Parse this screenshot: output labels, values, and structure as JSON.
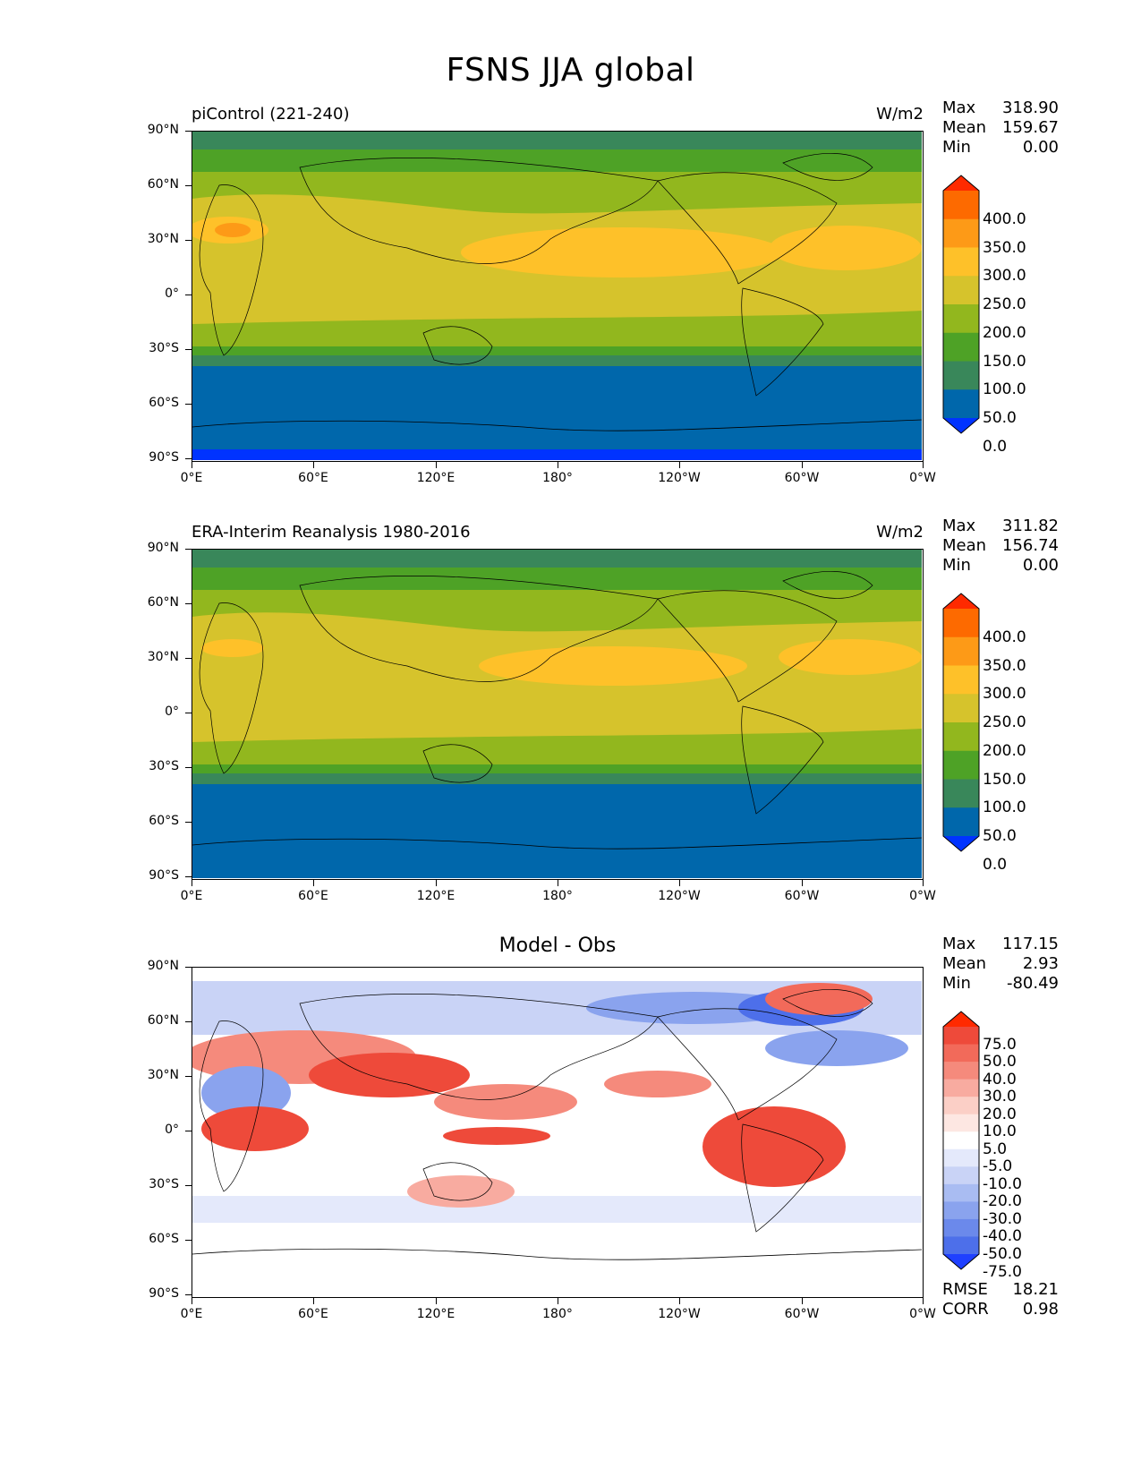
{
  "title": "FSNS JJA global",
  "axes": {
    "lat_labels": [
      "90°N",
      "60°N",
      "30°N",
      "0°",
      "30°S",
      "60°S",
      "90°S"
    ],
    "lon_labels": [
      "0°E",
      "60°E",
      "120°E",
      "180°",
      "120°W",
      "60°W",
      "0°W"
    ]
  },
  "panels": [
    {
      "title_left": "piControl (221-240)",
      "title_center": "",
      "units": "W/m2",
      "stats": {
        "max_label": "Max",
        "max": "318.90",
        "mean_label": "Mean",
        "mean": "159.67",
        "min_label": "Min",
        "min": "0.00"
      },
      "colorbar": {
        "labels": [
          "400.0",
          "350.0",
          "300.0",
          "250.0",
          "200.0",
          "150.0",
          "100.0",
          "50.0",
          "0.0"
        ],
        "colors": [
          "#fe2a00",
          "#fd6a00",
          "#fd9a17",
          "#fec129",
          "#d6c32c",
          "#92b71e",
          "#4ea226",
          "#39875a",
          "#0067ab",
          "#0033ff"
        ]
      }
    },
    {
      "title_left": "ERA-Interim Reanalysis 1980-2016",
      "title_center": "",
      "units": "W/m2",
      "stats": {
        "max_label": "Max",
        "max": "311.82",
        "mean_label": "Mean",
        "mean": "156.74",
        "min_label": "Min",
        "min": "0.00"
      },
      "colorbar": {
        "labels": [
          "400.0",
          "350.0",
          "300.0",
          "250.0",
          "200.0",
          "150.0",
          "100.0",
          "50.0",
          "0.0"
        ],
        "colors": [
          "#fe2a00",
          "#fd6a00",
          "#fd9a17",
          "#fec129",
          "#d6c32c",
          "#92b71e",
          "#4ea226",
          "#39875a",
          "#0067ab",
          "#0033ff"
        ]
      }
    },
    {
      "title_left": "",
      "title_center": "Model - Obs",
      "units": "",
      "stats": {
        "max_label": "Max",
        "max": "117.15",
        "mean_label": "Mean",
        "mean": "2.93",
        "min_label": "Min",
        "min": "-80.49"
      },
      "colorbar": {
        "labels": [
          "75.0",
          "50.0",
          "40.0",
          "30.0",
          "20.0",
          "10.0",
          "5.0",
          "-5.0",
          "-10.0",
          "-20.0",
          "-30.0",
          "-40.0",
          "-50.0",
          "-75.0"
        ],
        "colors": [
          "#ff2a00",
          "#ee4a3a",
          "#f26a5a",
          "#f58a7c",
          "#f8aba0",
          "#fbcfc6",
          "#fde7e2",
          "#ffffff",
          "#e4e9fb",
          "#c9d3f6",
          "#a9bcf2",
          "#8aa3ee",
          "#6b89eb",
          "#4d6fea",
          "#1f40ff"
        ]
      },
      "rmse": {
        "rmse_label": "RMSE",
        "rmse": "18.21",
        "corr_label": "CORR",
        "corr": "0.98"
      }
    }
  ]
}
